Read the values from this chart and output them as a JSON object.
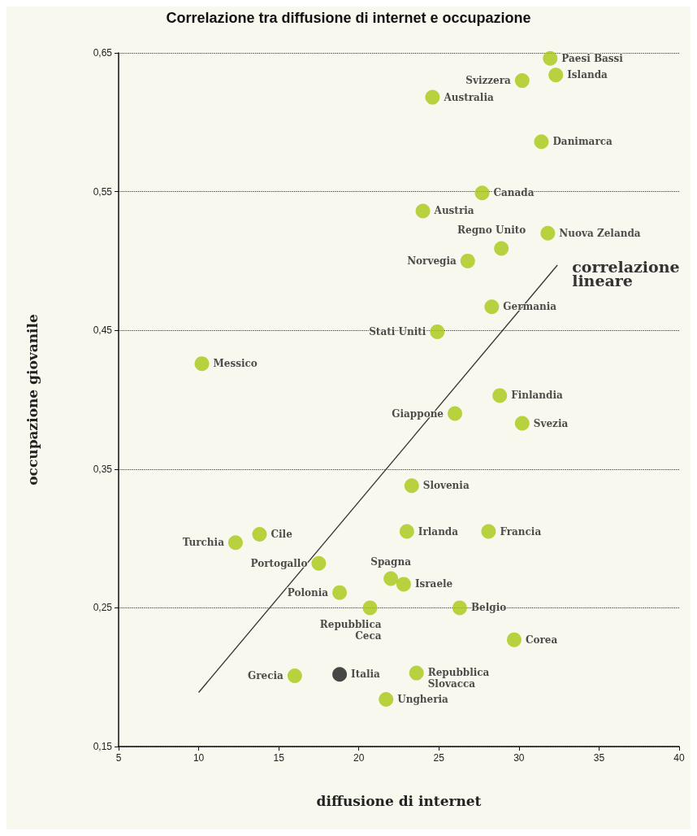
{
  "chart_data": {
    "type": "scatter",
    "title": "Correlazione tra diffusione di internet e occupazione",
    "xlabel": "diffusione di internet",
    "ylabel": "occupazione giovanile",
    "x": [
      31.95,
      32.3,
      30.2,
      24.6,
      31.4,
      27.7,
      24.0,
      31.8,
      28.9,
      26.8,
      28.3,
      24.9,
      10.2,
      28.8,
      26.0,
      30.2,
      23.3,
      23.0,
      28.1,
      13.8,
      12.3,
      17.5,
      22.0,
      22.8,
      18.8,
      20.7,
      26.3,
      29.7,
      16.0,
      18.8,
      23.6,
      21.7
    ],
    "series": [
      {
        "values": [
          0.646,
          0.634,
          0.63,
          0.618,
          0.586,
          0.549,
          0.536,
          0.52,
          0.509,
          0.5,
          0.467,
          0.449,
          0.426,
          0.403,
          0.39,
          0.383,
          0.338,
          0.305,
          0.305,
          0.303,
          0.297,
          0.282,
          0.271,
          0.267,
          0.261,
          0.25,
          0.25,
          0.227,
          0.201,
          0.202,
          0.203,
          0.184
        ],
        "colors": [
          "#a8c813",
          "#a8c813",
          "#a8c813",
          "#a8c813",
          "#a8c813",
          "#a8c813",
          "#a8c813",
          "#a8c813",
          "#a8c813",
          "#a8c813",
          "#a8c813",
          "#a8c813",
          "#a8c813",
          "#a8c813",
          "#a8c813",
          "#a8c813",
          "#a8c813",
          "#a8c813",
          "#a8c813",
          "#a8c813",
          "#a8c813",
          "#a8c813",
          "#a8c813",
          "#a8c813",
          "#a8c813",
          "#a8c813",
          "#a8c813",
          "#a8c813",
          "#a8c813",
          "#1a1a1a",
          "#a8c813",
          "#a8c813"
        ]
      },
      {
        "type": "line",
        "name": "correlazione lineare",
        "color": "#333333",
        "marker": "none",
        "x": [
          10.0,
          32.4
        ],
        "values": [
          0.189,
          0.497
        ]
      }
    ],
    "annotations": [
      {
        "text": "Paesi Bassi",
        "x": 31.95,
        "y": 0.646
      },
      {
        "text": "Islanda",
        "x": 32.3,
        "y": 0.634
      },
      {
        "text": "Svizzera",
        "x": 30.2,
        "y": 0.63
      },
      {
        "text": "Australia",
        "x": 24.6,
        "y": 0.618
      },
      {
        "text": "Danimarca",
        "x": 31.4,
        "y": 0.586
      },
      {
        "text": "Canada",
        "x": 27.7,
        "y": 0.549
      },
      {
        "text": "Austria",
        "x": 24.0,
        "y": 0.536
      },
      {
        "text": "Nuova Zelanda",
        "x": 31.8,
        "y": 0.52
      },
      {
        "text": "Regno Unito",
        "x": 28.9,
        "y": 0.509
      },
      {
        "text": "Norvegia",
        "x": 26.8,
        "y": 0.5
      },
      {
        "text": "Germania",
        "x": 28.3,
        "y": 0.467
      },
      {
        "text": "Stati Uniti",
        "x": 24.9,
        "y": 0.449
      },
      {
        "text": "Messico",
        "x": 10.2,
        "y": 0.426
      },
      {
        "text": "Finlandia",
        "x": 28.8,
        "y": 0.403
      },
      {
        "text": "Giappone",
        "x": 26.0,
        "y": 0.39
      },
      {
        "text": "Svezia",
        "x": 30.2,
        "y": 0.383
      },
      {
        "text": "Slovenia",
        "x": 23.3,
        "y": 0.338
      },
      {
        "text": "Irlanda",
        "x": 23.0,
        "y": 0.305
      },
      {
        "text": "Francia",
        "x": 28.1,
        "y": 0.305
      },
      {
        "text": "Cile",
        "x": 13.8,
        "y": 0.303
      },
      {
        "text": "Turchia",
        "x": 12.3,
        "y": 0.297
      },
      {
        "text": "Portogallo",
        "x": 17.5,
        "y": 0.282
      },
      {
        "text": "Spagna",
        "x": 22.0,
        "y": 0.271
      },
      {
        "text": "Israele",
        "x": 22.8,
        "y": 0.267
      },
      {
        "text": "Polonia",
        "x": 18.8,
        "y": 0.261
      },
      {
        "text": "Repubblica\nCeca",
        "x": 20.7,
        "y": 0.25
      },
      {
        "text": "Belgio",
        "x": 26.3,
        "y": 0.25
      },
      {
        "text": "Corea",
        "x": 29.7,
        "y": 0.227
      },
      {
        "text": "Grecia",
        "x": 16.0,
        "y": 0.201
      },
      {
        "text": "Italia",
        "x": 18.8,
        "y": 0.202
      },
      {
        "text": "Repubblica\nSlovacca",
        "x": 23.6,
        "y": 0.203
      },
      {
        "text": "Ungheria",
        "x": 21.7,
        "y": 0.184
      }
    ],
    "xlim": [
      5,
      40
    ],
    "xticks": [
      5,
      10,
      15,
      20,
      25,
      30,
      35,
      40
    ],
    "ylim": [
      0.15,
      0.65
    ],
    "yticks": [
      {
        "value": 0.15,
        "label": "0,15"
      },
      {
        "value": 0.25,
        "label": "0,25"
      },
      {
        "value": 0.35,
        "label": "0,35"
      },
      {
        "value": 0.45,
        "label": "0,45"
      },
      {
        "value": 0.55,
        "label": "0,55"
      },
      {
        "value": 0.65,
        "label": "0,65"
      }
    ],
    "grid": "y",
    "marker": "circle"
  }
}
